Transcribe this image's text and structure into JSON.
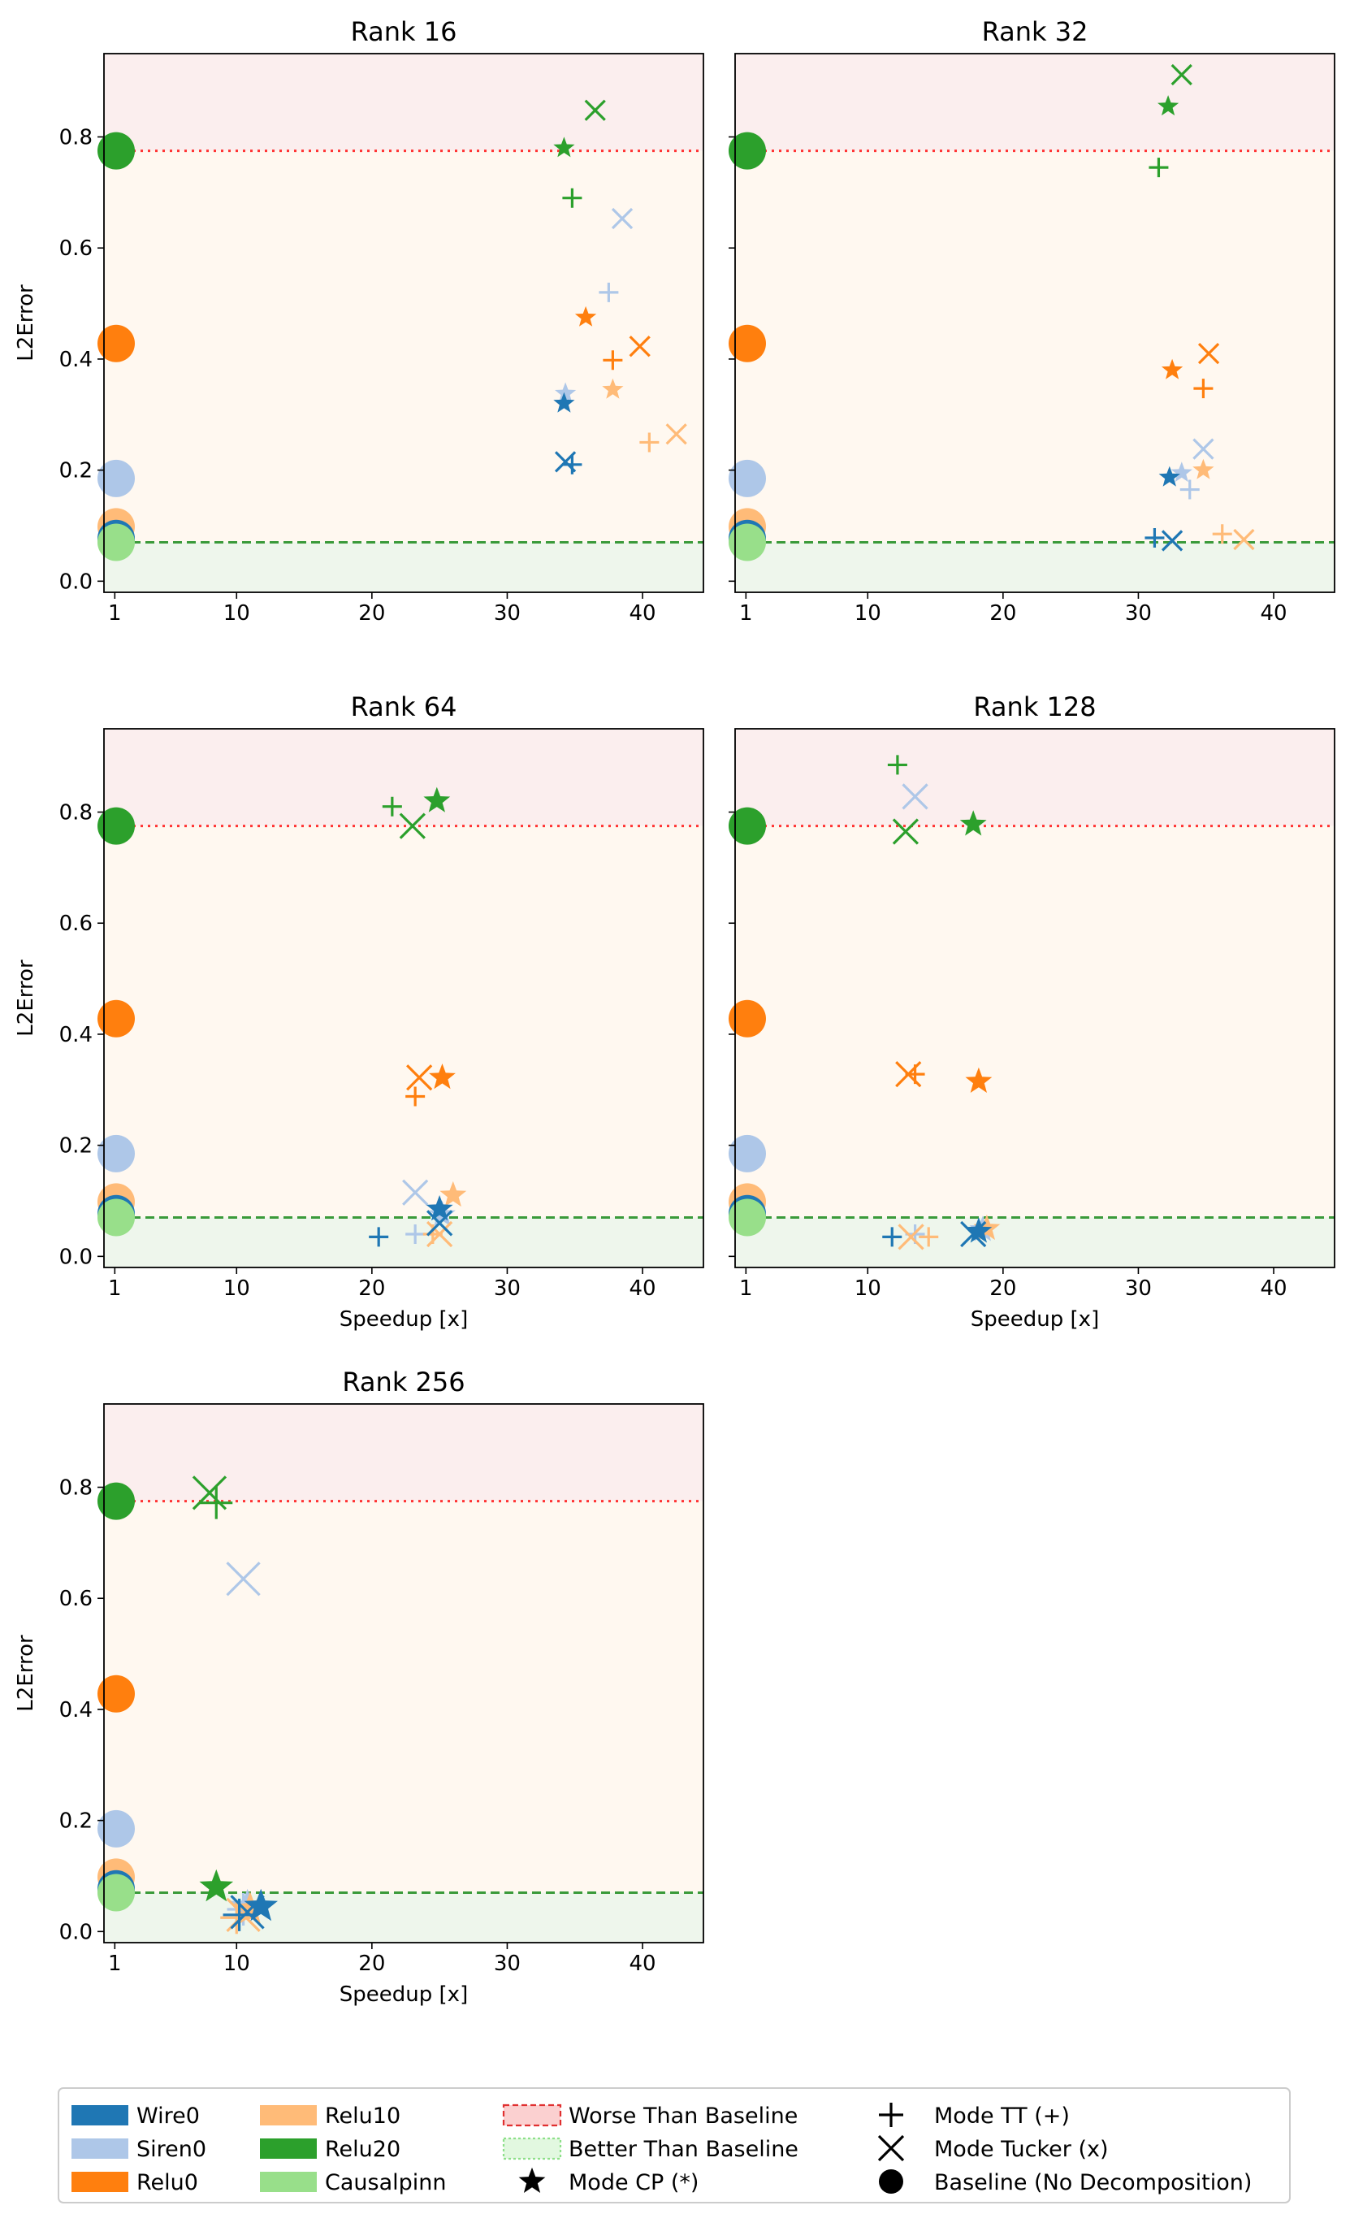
{
  "colors": {
    "Wire0": "#1f77b4",
    "Siren0": "#aec7e8",
    "Relu0": "#ff7f0e",
    "Relu10": "#ffbb78",
    "Relu20": "#2ca02c",
    "Causalpinn": "#98df8a",
    "worse_region": "#fbeeee",
    "middle_region": "#fff8f0",
    "better_region": "#eef6ec",
    "worse_line": "#ff3333",
    "better_line": "#3a9a3a"
  },
  "chart_data": {
    "type": "scatter",
    "xlabel": "Speedup [x]",
    "ylabel": "L2Error",
    "xlim": [
      0.2,
      44.5
    ],
    "ylim": [
      -0.02,
      0.95
    ],
    "xticks": [
      1,
      10,
      20,
      30,
      40
    ],
    "yticks": [
      0.0,
      0.2,
      0.4,
      0.6,
      0.8
    ],
    "worse_threshold": 0.775,
    "better_threshold": 0.07,
    "baselines": [
      {
        "series": "Relu20",
        "x": 1.1,
        "y": 0.775
      },
      {
        "series": "Relu0",
        "x": 1.1,
        "y": 0.428
      },
      {
        "series": "Siren0",
        "x": 1.1,
        "y": 0.185
      },
      {
        "series": "Relu10",
        "x": 1.1,
        "y": 0.098
      },
      {
        "series": "Wire0",
        "x": 1.1,
        "y": 0.077
      },
      {
        "series": "Causalpinn",
        "x": 1.1,
        "y": 0.07
      }
    ],
    "panels": [
      {
        "title": "Rank 16",
        "show_xlabel": false,
        "show_ylabel": true,
        "points": [
          {
            "series": "Relu20",
            "mode": "TT",
            "x": 34.8,
            "y": 0.69
          },
          {
            "series": "Relu20",
            "mode": "Tucker",
            "x": 36.5,
            "y": 0.848
          },
          {
            "series": "Relu20",
            "mode": "CP",
            "x": 34.2,
            "y": 0.78
          },
          {
            "series": "Siren0",
            "mode": "TT",
            "x": 37.5,
            "y": 0.52
          },
          {
            "series": "Siren0",
            "mode": "Tucker",
            "x": 38.5,
            "y": 0.653
          },
          {
            "series": "Siren0",
            "mode": "CP",
            "x": 34.3,
            "y": 0.338
          },
          {
            "series": "Relu0",
            "mode": "TT",
            "x": 37.8,
            "y": 0.398
          },
          {
            "series": "Relu0",
            "mode": "Tucker",
            "x": 39.8,
            "y": 0.423
          },
          {
            "series": "Relu0",
            "mode": "CP",
            "x": 35.8,
            "y": 0.475
          },
          {
            "series": "Relu10",
            "mode": "TT",
            "x": 40.5,
            "y": 0.25
          },
          {
            "series": "Relu10",
            "mode": "Tucker",
            "x": 42.5,
            "y": 0.265
          },
          {
            "series": "Relu10",
            "mode": "CP",
            "x": 37.8,
            "y": 0.345
          },
          {
            "series": "Wire0",
            "mode": "TT",
            "x": 34.8,
            "y": 0.21
          },
          {
            "series": "Wire0",
            "mode": "Tucker",
            "x": 34.3,
            "y": 0.215
          },
          {
            "series": "Wire0",
            "mode": "CP",
            "x": 34.2,
            "y": 0.32
          }
        ]
      },
      {
        "title": "Rank 32",
        "show_xlabel": false,
        "show_ylabel": false,
        "points": [
          {
            "series": "Relu20",
            "mode": "TT",
            "x": 31.5,
            "y": 0.745
          },
          {
            "series": "Relu20",
            "mode": "Tucker",
            "x": 33.2,
            "y": 0.912
          },
          {
            "series": "Relu20",
            "mode": "CP",
            "x": 32.2,
            "y": 0.855
          },
          {
            "series": "Relu0",
            "mode": "TT",
            "x": 34.8,
            "y": 0.347
          },
          {
            "series": "Relu0",
            "mode": "Tucker",
            "x": 35.2,
            "y": 0.41
          },
          {
            "series": "Relu0",
            "mode": "CP",
            "x": 32.5,
            "y": 0.38
          },
          {
            "series": "Siren0",
            "mode": "TT",
            "x": 33.8,
            "y": 0.165
          },
          {
            "series": "Siren0",
            "mode": "Tucker",
            "x": 34.8,
            "y": 0.238
          },
          {
            "series": "Siren0",
            "mode": "CP",
            "x": 33.2,
            "y": 0.195
          },
          {
            "series": "Relu10",
            "mode": "TT",
            "x": 36.2,
            "y": 0.085
          },
          {
            "series": "Relu10",
            "mode": "Tucker",
            "x": 37.8,
            "y": 0.075
          },
          {
            "series": "Relu10",
            "mode": "CP",
            "x": 34.8,
            "y": 0.2
          },
          {
            "series": "Wire0",
            "mode": "TT",
            "x": 31.2,
            "y": 0.078
          },
          {
            "series": "Wire0",
            "mode": "Tucker",
            "x": 32.5,
            "y": 0.073
          },
          {
            "series": "Wire0",
            "mode": "CP",
            "x": 32.3,
            "y": 0.187
          }
        ]
      },
      {
        "title": "Rank 64",
        "show_xlabel": true,
        "show_ylabel": true,
        "points": [
          {
            "series": "Relu20",
            "mode": "TT",
            "x": 21.5,
            "y": 0.81
          },
          {
            "series": "Relu20",
            "mode": "Tucker",
            "x": 23.0,
            "y": 0.775
          },
          {
            "series": "Relu20",
            "mode": "CP",
            "x": 24.8,
            "y": 0.82
          },
          {
            "series": "Relu0",
            "mode": "TT",
            "x": 23.2,
            "y": 0.288
          },
          {
            "series": "Relu0",
            "mode": "Tucker",
            "x": 23.5,
            "y": 0.322
          },
          {
            "series": "Relu0",
            "mode": "CP",
            "x": 25.2,
            "y": 0.322
          },
          {
            "series": "Siren0",
            "mode": "TT",
            "x": 23.2,
            "y": 0.04
          },
          {
            "series": "Siren0",
            "mode": "Tucker",
            "x": 23.2,
            "y": 0.115
          },
          {
            "series": "Siren0",
            "mode": "CP",
            "x": 25.2,
            "y": 0.075
          },
          {
            "series": "Relu10",
            "mode": "TT",
            "x": 24.5,
            "y": 0.04
          },
          {
            "series": "Relu10",
            "mode": "Tucker",
            "x": 25.0,
            "y": 0.04
          },
          {
            "series": "Relu10",
            "mode": "CP",
            "x": 26.0,
            "y": 0.11
          },
          {
            "series": "Wire0",
            "mode": "TT",
            "x": 20.5,
            "y": 0.035
          },
          {
            "series": "Wire0",
            "mode": "Tucker",
            "x": 25.0,
            "y": 0.06
          },
          {
            "series": "Wire0",
            "mode": "CP",
            "x": 25.0,
            "y": 0.085
          }
        ]
      },
      {
        "title": "Rank 128",
        "show_xlabel": true,
        "show_ylabel": false,
        "points": [
          {
            "series": "Relu20",
            "mode": "TT",
            "x": 12.2,
            "y": 0.885
          },
          {
            "series": "Relu20",
            "mode": "Tucker",
            "x": 12.8,
            "y": 0.765
          },
          {
            "series": "Relu20",
            "mode": "CP",
            "x": 17.8,
            "y": 0.778
          },
          {
            "series": "Siren0",
            "mode": "Tucker",
            "x": 13.5,
            "y": 0.828
          },
          {
            "series": "Relu0",
            "mode": "TT",
            "x": 13.5,
            "y": 0.328
          },
          {
            "series": "Relu0",
            "mode": "Tucker",
            "x": 13.0,
            "y": 0.328
          },
          {
            "series": "Relu0",
            "mode": "CP",
            "x": 18.2,
            "y": 0.315
          },
          {
            "series": "Siren0",
            "mode": "TT",
            "x": 13.5,
            "y": 0.04
          },
          {
            "series": "Siren0",
            "mode": "CP",
            "x": 18.5,
            "y": 0.048
          },
          {
            "series": "Relu10",
            "mode": "TT",
            "x": 14.5,
            "y": 0.035
          },
          {
            "series": "Relu10",
            "mode": "Tucker",
            "x": 13.2,
            "y": 0.035
          },
          {
            "series": "Relu10",
            "mode": "CP",
            "x": 18.8,
            "y": 0.05
          },
          {
            "series": "Wire0",
            "mode": "TT",
            "x": 11.8,
            "y": 0.035
          },
          {
            "series": "Wire0",
            "mode": "Tucker",
            "x": 17.8,
            "y": 0.04
          },
          {
            "series": "Wire0",
            "mode": "CP",
            "x": 18.2,
            "y": 0.045
          }
        ]
      },
      {
        "title": "Rank 256",
        "show_xlabel": true,
        "show_ylabel": true,
        "points": [
          {
            "series": "Relu20",
            "mode": "TT",
            "x": 8.5,
            "y": 0.772
          },
          {
            "series": "Relu20",
            "mode": "Tucker",
            "x": 8.0,
            "y": 0.79
          },
          {
            "series": "Relu20",
            "mode": "CP",
            "x": 8.5,
            "y": 0.08
          },
          {
            "series": "Siren0",
            "mode": "Tucker",
            "x": 10.5,
            "y": 0.635
          },
          {
            "series": "Siren0",
            "mode": "TT",
            "x": 10.5,
            "y": 0.04
          },
          {
            "series": "Siren0",
            "mode": "CP",
            "x": 10.8,
            "y": 0.045
          },
          {
            "series": "Relu10",
            "mode": "TT",
            "x": 10.0,
            "y": 0.025
          },
          {
            "series": "Relu10",
            "mode": "Tucker",
            "x": 10.5,
            "y": 0.03
          },
          {
            "series": "Relu10",
            "mode": "CP",
            "x": 11.0,
            "y": 0.04
          },
          {
            "series": "Wire0",
            "mode": "TT",
            "x": 10.2,
            "y": 0.03
          },
          {
            "series": "Wire0",
            "mode": "Tucker",
            "x": 10.8,
            "y": 0.035
          },
          {
            "series": "Wire0",
            "mode": "CP",
            "x": 11.8,
            "y": 0.045
          }
        ]
      }
    ],
    "legend": {
      "position": "bottom-center",
      "series": [
        "Wire0",
        "Siren0",
        "Relu0",
        "Relu10",
        "Relu20",
        "Causalpinn"
      ],
      "regions": [
        {
          "key": "worse",
          "label": "Worse Than Baseline"
        },
        {
          "key": "better",
          "label": "Better Than Baseline"
        }
      ],
      "modes": [
        {
          "key": "CP",
          "label": "Mode CP (*)"
        },
        {
          "key": "TT",
          "label": "Mode TT (+)"
        },
        {
          "key": "Tucker",
          "label": "Mode Tucker (x)"
        },
        {
          "key": "Baseline",
          "label": "Baseline (No Decomposition)"
        }
      ]
    }
  }
}
